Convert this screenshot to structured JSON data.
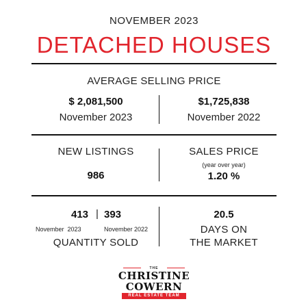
{
  "header": {
    "period": "NOVEMBER 2023",
    "title": "DETACHED HOUSES"
  },
  "average_price": {
    "label": "AVERAGE SELLING PRICE",
    "current_value": "$ 2,081,500",
    "current_period": "November 2023",
    "previous_value": "$1,725,838",
    "previous_period": "November 2022"
  },
  "new_listings": {
    "label": "NEW LISTINGS",
    "value": "986"
  },
  "sales_price": {
    "label": "SALES PRICE",
    "note": "(year over year)",
    "value": "1.20 %"
  },
  "quantity_sold": {
    "current_value": "413",
    "separator": "|",
    "previous_value": "393",
    "current_period": "November  2023",
    "previous_period": "November 2022",
    "label": "QUANTITY SOLD"
  },
  "days_on_market": {
    "value": "20.5",
    "label_line1": "DAYS ON",
    "label_line2": "THE MARKET"
  },
  "logo": {
    "the": "THE",
    "line1": "CHRISTINE",
    "line2": "COWERN",
    "tagline": "REAL ESTATE TEAM"
  },
  "colors": {
    "accent": "#e1252d",
    "text": "#111111",
    "background": "#ffffff"
  }
}
